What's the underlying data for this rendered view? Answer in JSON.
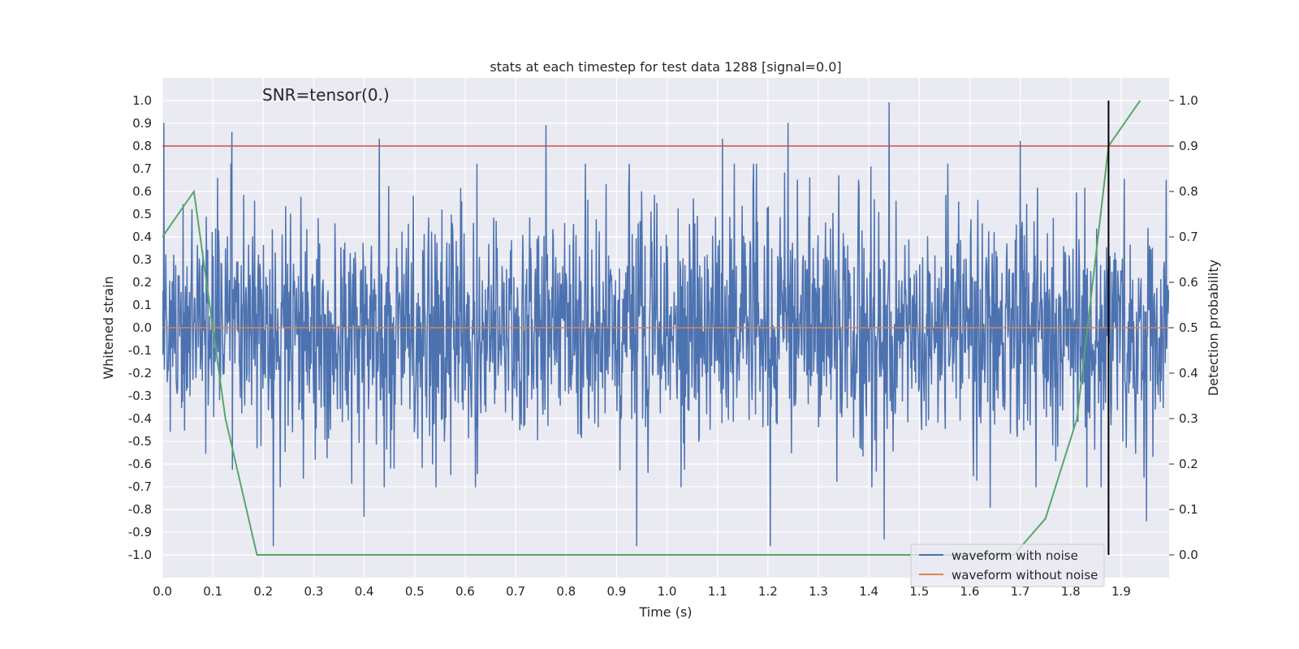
{
  "chart_data": {
    "type": "line",
    "title": "stats at each timestep for test data 1288 [signal=0.0]",
    "xlabel": "Time (s)",
    "ylabel": "Whitened strain",
    "y2label": "Detection probability",
    "annotation": "SNR=tensor(0.)",
    "xlim": [
      0.0,
      2.0
    ],
    "ylim": [
      -1.1,
      1.1
    ],
    "y2lim": [
      -0.05,
      1.05
    ],
    "x_ticks": [
      "0.0",
      "0.1",
      "0.2",
      "0.3",
      "0.4",
      "0.5",
      "0.6",
      "0.7",
      "0.8",
      "0.9",
      "1.0",
      "1.1",
      "1.2",
      "1.3",
      "1.4",
      "1.5",
      "1.6",
      "1.7",
      "1.8",
      "1.9"
    ],
    "y_ticks": [
      "1.0",
      "0.9",
      "0.8",
      "0.7",
      "0.6",
      "0.5",
      "0.4",
      "0.3",
      "0.2",
      "0.1",
      "0.0",
      "-0.1",
      "-0.2",
      "-0.3",
      "-0.4",
      "-0.5",
      "-0.6",
      "-0.7",
      "-0.8",
      "-0.9",
      "-1.0"
    ],
    "y2_ticks": [
      "1.0",
      "0.9",
      "0.8",
      "0.7",
      "0.6",
      "0.5",
      "0.4",
      "0.3",
      "0.2",
      "0.1",
      "0.0"
    ],
    "grid": true,
    "legend_location": "lower-right",
    "colors": {
      "noise": "#4c72b0",
      "clean": "#dd8452",
      "probability": "#55a868",
      "threshold": "#c44e52",
      "marker": "#000000",
      "plot_bg": "#eaeaf2",
      "grid": "#ffffff"
    },
    "series": [
      {
        "name": "waveform with noise",
        "axis": "left",
        "style": "noise",
        "generator": {
          "seed": 1288,
          "count": 2048,
          "x_start": 0.0,
          "x_end": 2.0,
          "clip": [
            -0.96,
            1.0
          ]
        },
        "values": [],
        "spikes": [
          {
            "x": 0.003,
            "y": 0.9
          },
          {
            "x": 0.138,
            "y": 0.86
          },
          {
            "x": 0.22,
            "y": -0.96
          },
          {
            "x": 0.43,
            "y": 0.83
          },
          {
            "x": 0.4,
            "y": -0.83
          },
          {
            "x": 0.76,
            "y": 0.89
          },
          {
            "x": 0.94,
            "y": -0.96
          },
          {
            "x": 1.11,
            "y": 0.83
          },
          {
            "x": 1.205,
            "y": -0.96
          },
          {
            "x": 1.24,
            "y": 0.9
          },
          {
            "x": 1.44,
            "y": 0.99
          },
          {
            "x": 1.43,
            "y": -0.93
          },
          {
            "x": 1.7,
            "y": 0.82
          },
          {
            "x": 1.64,
            "y": -0.79
          },
          {
            "x": 1.95,
            "y": -0.85
          }
        ]
      },
      {
        "name": "waveform without noise",
        "axis": "left",
        "style": "clean",
        "x": [
          0.0,
          2.0
        ],
        "values": [
          0.0,
          0.0
        ]
      },
      {
        "name": "detection probability",
        "axis": "right",
        "style": "probability",
        "x": [
          0.0,
          0.0625,
          0.125,
          0.1875,
          0.25,
          0.3125,
          0.375,
          0.4375,
          0.5,
          0.5625,
          0.625,
          0.6875,
          0.75,
          0.8125,
          0.875,
          0.9375,
          1.0,
          1.0625,
          1.125,
          1.1875,
          1.25,
          1.3125,
          1.375,
          1.4375,
          1.5,
          1.5625,
          1.625,
          1.6875,
          1.75,
          1.8125,
          1.875,
          1.9375
        ],
        "values": [
          0.7,
          0.8,
          0.3,
          0.0,
          0.0,
          0.0,
          0.0,
          0.0,
          0.0,
          0.0,
          0.0,
          0.0,
          0.0,
          0.0,
          0.0,
          0.0,
          0.0,
          0.0,
          0.0,
          0.0,
          0.0,
          0.0,
          0.0,
          0.0,
          0.0,
          0.0,
          0.0,
          0.0,
          0.08,
          0.3,
          0.9,
          1.0
        ]
      }
    ],
    "threshold_line": {
      "axis": "right",
      "value": 0.9
    },
    "marker_line": {
      "x": 1.875,
      "y_from": 0.0,
      "y_to": 1.0,
      "axis": "right"
    },
    "legend": [
      "waveform with noise",
      "waveform without noise"
    ]
  }
}
